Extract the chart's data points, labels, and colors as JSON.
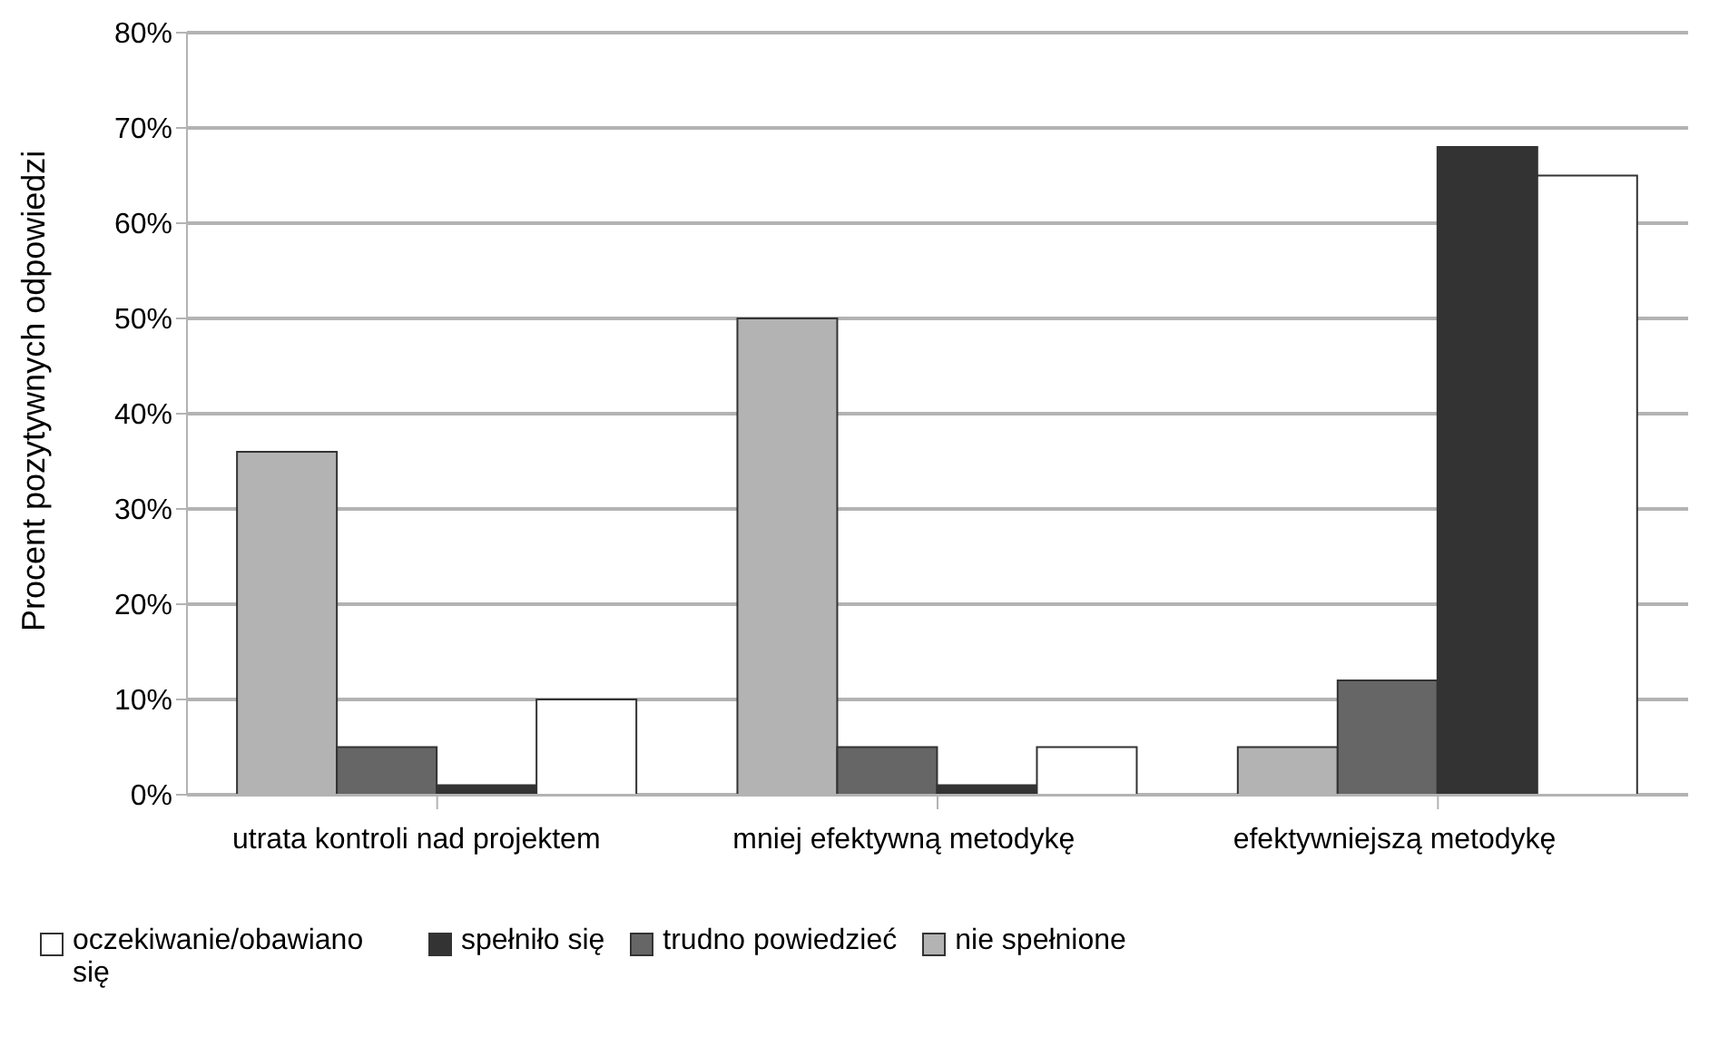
{
  "chart_data": {
    "type": "bar",
    "ylabel": "Procent pozytywnych odpowiedzi",
    "categories": [
      "utrata kontroli nad projektem",
      "mniej efektywną metodykę",
      "efektywniejszą metodykę"
    ],
    "series": [
      {
        "name": "nie spełnione",
        "color": "#b3b3b3",
        "values": [
          36,
          50,
          5
        ]
      },
      {
        "name": "trudno powiedzieć",
        "color": "#666666",
        "values": [
          5,
          5,
          12
        ]
      },
      {
        "name": "spełniło się",
        "color": "#333333",
        "values": [
          1,
          1,
          68
        ]
      },
      {
        "name": "oczekiwanie/obawiano się",
        "color": "#ffffff",
        "values": [
          10,
          5,
          65
        ]
      }
    ],
    "ylim": [
      0,
      80
    ],
    "yticks": [
      {
        "value": 0,
        "label": "0%"
      },
      {
        "value": 10,
        "label": "10%"
      },
      {
        "value": 20,
        "label": "20%"
      },
      {
        "value": 30,
        "label": "30%"
      },
      {
        "value": 40,
        "label": "40%"
      },
      {
        "value": 50,
        "label": "50%"
      },
      {
        "value": 60,
        "label": "60%"
      },
      {
        "value": 70,
        "label": "70%"
      },
      {
        "value": 80,
        "label": "80%"
      }
    ],
    "grid": "y",
    "legend": "bottom"
  }
}
